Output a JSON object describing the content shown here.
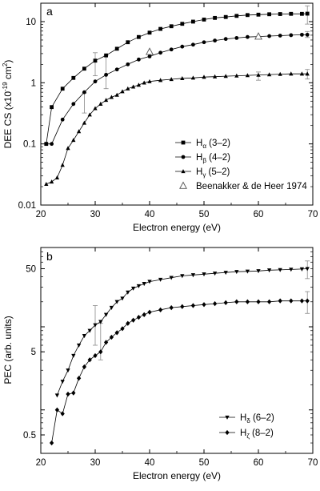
{
  "chart_data": [
    {
      "panel_label": "a",
      "type": "line",
      "xlabel": "Electron energy (eV)",
      "ylabel": "DEE CS (x10",
      "ylabel_sup": "-19",
      "ylabel_tail": " cm",
      "ylabel_sup2": "2",
      "ylabel_end": ")",
      "xlim": [
        20,
        70
      ],
      "ylim": [
        0.01,
        20
      ],
      "yscale": "log",
      "xticks": [
        "20",
        "30",
        "40",
        "50",
        "60",
        "70"
      ],
      "yticks": [
        "0.01",
        "0.1",
        "1",
        "10"
      ],
      "legend_position": "lower-right",
      "series": [
        {
          "name": "H",
          "sub": "α",
          "suffix": " (3–2)",
          "marker": "square",
          "x": [
            21,
            22,
            24,
            26,
            28,
            30,
            32,
            34,
            36,
            38,
            40,
            42,
            44,
            46,
            48,
            50,
            52,
            54,
            56,
            58,
            60,
            62,
            64,
            66,
            68,
            69
          ],
          "y": [
            0.1,
            0.4,
            0.8,
            1.2,
            1.7,
            2.3,
            2.8,
            3.6,
            4.6,
            5.6,
            6.6,
            7.6,
            8.4,
            9.2,
            10.0,
            10.8,
            11.5,
            11.9,
            12.4,
            12.8,
            13.0,
            13.2,
            13.3,
            13.4,
            13.4,
            13.5
          ]
        },
        {
          "name": "H",
          "sub": "β",
          "suffix": " (4–2)",
          "marker": "circle",
          "x": [
            21,
            22,
            24,
            26,
            28,
            30,
            32,
            34,
            36,
            38,
            40,
            42,
            44,
            46,
            48,
            50,
            52,
            54,
            56,
            58,
            60,
            62,
            64,
            66,
            68,
            69
          ],
          "y": [
            0.1,
            0.1,
            0.25,
            0.45,
            0.7,
            1.05,
            1.35,
            1.65,
            2.0,
            2.4,
            2.7,
            3.1,
            3.5,
            3.9,
            4.2,
            4.6,
            4.9,
            5.2,
            5.4,
            5.6,
            5.7,
            5.8,
            5.9,
            6.0,
            6.1,
            6.1
          ]
        },
        {
          "name": "H",
          "sub": "γ",
          "suffix": " (5–2)",
          "marker": "triangle",
          "x": [
            21,
            22,
            23,
            24,
            25,
            26,
            27,
            28,
            29,
            30,
            31,
            32,
            33,
            34,
            35,
            36,
            37,
            38,
            39,
            40,
            42,
            44,
            46,
            48,
            50,
            52,
            54,
            56,
            58,
            60,
            62,
            64,
            66,
            68,
            69
          ],
          "y": [
            0.022,
            0.024,
            0.028,
            0.045,
            0.085,
            0.115,
            0.16,
            0.22,
            0.3,
            0.38,
            0.45,
            0.52,
            0.58,
            0.63,
            0.72,
            0.8,
            0.86,
            0.92,
            1.0,
            1.05,
            1.1,
            1.14,
            1.18,
            1.2,
            1.24,
            1.26,
            1.28,
            1.3,
            1.32,
            1.34,
            1.36,
            1.38,
            1.4,
            1.4,
            1.4
          ]
        },
        {
          "name": "Beenakker & de Heer 1974",
          "marker": "open-triangle",
          "x": [
            40,
            60
          ],
          "y": [
            3.2,
            5.7
          ]
        }
      ]
    },
    {
      "panel_label": "b",
      "type": "line",
      "xlabel": "Electron energy (eV)",
      "ylabel": "PEC (arb. units)",
      "xlim": [
        20,
        70
      ],
      "ylim": [
        0.3,
        90
      ],
      "yscale": "log",
      "xticks": [
        "20",
        "30",
        "40",
        "50",
        "60",
        "70"
      ],
      "yticks": [
        "0.5",
        "5",
        "50"
      ],
      "legend_position": "lower-right",
      "series": [
        {
          "name": "H",
          "sub": "δ",
          "suffix": " (6–2)",
          "marker": "down-triangle",
          "x": [
            23,
            24,
            25,
            26,
            27,
            28,
            29,
            30,
            31,
            32,
            33,
            34,
            35,
            36,
            37,
            38,
            39,
            40,
            42,
            44,
            46,
            48,
            50,
            52,
            54,
            56,
            58,
            60,
            62,
            64,
            66,
            68,
            69
          ],
          "y": [
            1.5,
            2.2,
            3.0,
            4.5,
            6.0,
            7.8,
            9.0,
            10.5,
            11.5,
            14.0,
            17.0,
            20.0,
            22.0,
            26.0,
            29.0,
            31.0,
            33.0,
            35.0,
            37.0,
            39.0,
            41.0,
            42.0,
            43.0,
            44.0,
            45.0,
            46.0,
            46.5,
            47.0,
            48.0,
            48.5,
            49.0,
            49.5,
            50.0
          ]
        },
        {
          "name": "H",
          "sub": "ζ",
          "suffix": " (8–2)",
          "marker": "diamond",
          "x": [
            22,
            23,
            24,
            25,
            26,
            27,
            28,
            29,
            30,
            31,
            32,
            33,
            34,
            35,
            36,
            37,
            38,
            39,
            40,
            42,
            44,
            46,
            48,
            50,
            52,
            54,
            56,
            58,
            60,
            62,
            64,
            66,
            68,
            69
          ],
          "y": [
            0.4,
            1.0,
            0.9,
            1.55,
            1.6,
            2.4,
            3.3,
            4.0,
            4.5,
            5.0,
            6.5,
            7.5,
            8.5,
            9.5,
            11.0,
            12.0,
            13.0,
            14.0,
            15.0,
            16.0,
            17.0,
            17.5,
            18.0,
            18.5,
            19.0,
            19.5,
            20.0,
            20.0,
            20.0,
            20.0,
            20.5,
            20.5,
            20.5,
            20.5
          ]
        }
      ]
    }
  ]
}
